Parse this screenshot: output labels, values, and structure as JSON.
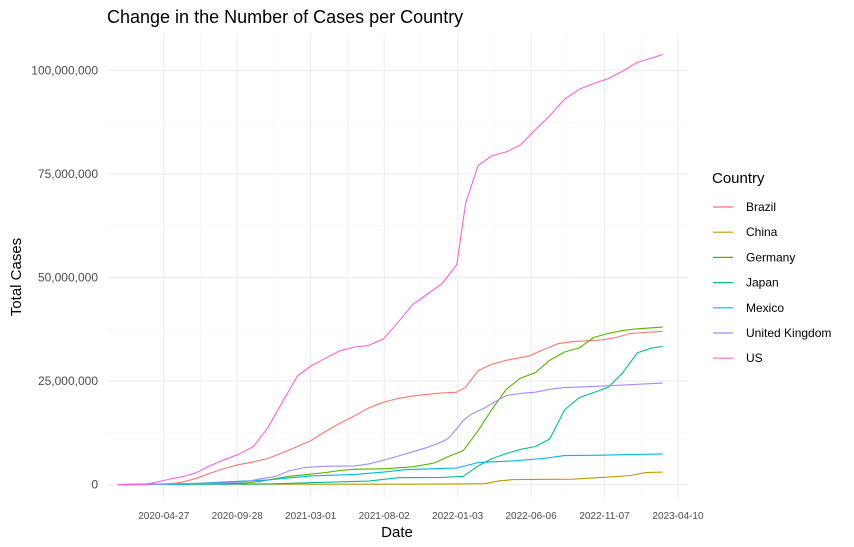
{
  "chart_data": {
    "type": "line",
    "title": "Change in the Number of Cases per Country",
    "xlabel": "Date",
    "ylabel": "Total Cases",
    "x_tick_labels": [
      "2020-04-27",
      "2020-09-28",
      "2021-03-01",
      "2021-08-02",
      "2022-01-03",
      "2022-06-06",
      "2022-11-07",
      "2023-04-10"
    ],
    "x_ticks": [
      "2020-04-27",
      "2020-09-28",
      "2021-03-01",
      "2021-08-02",
      "2022-01-03",
      "2022-06-06",
      "2022-11-07",
      "2023-04-10"
    ],
    "xlim": [
      "2020-01-01",
      "2023-05-01"
    ],
    "y_tick_labels": [
      "0",
      "25,000,000",
      "50,000,000",
      "75,000,000",
      "100,000,000"
    ],
    "y_ticks": [
      0,
      25000000,
      50000000,
      75000000,
      100000000
    ],
    "ylim": [
      -3000000,
      109000000
    ],
    "grid": true,
    "legend": {
      "title": "Country",
      "position": "right"
    },
    "series": [
      {
        "name": "Brazil",
        "color": "#F8766D",
        "points": [
          [
            "2020-01-22",
            0
          ],
          [
            "2020-03-15",
            0
          ],
          [
            "2020-05-01",
            100000
          ],
          [
            "2020-06-01",
            500000
          ],
          [
            "2020-07-01",
            1400000
          ],
          [
            "2020-08-01",
            2700000
          ],
          [
            "2020-09-01",
            3900000
          ],
          [
            "2020-10-01",
            4800000
          ],
          [
            "2020-11-01",
            5500000
          ],
          [
            "2020-12-01",
            6300000
          ],
          [
            "2021-01-01",
            7700000
          ],
          [
            "2021-02-01",
            9200000
          ],
          [
            "2021-03-01",
            10600000
          ],
          [
            "2021-04-01",
            12800000
          ],
          [
            "2021-05-01",
            14800000
          ],
          [
            "2021-06-01",
            16600000
          ],
          [
            "2021-07-01",
            18500000
          ],
          [
            "2021-08-01",
            19900000
          ],
          [
            "2021-09-01",
            20800000
          ],
          [
            "2021-10-01",
            21400000
          ],
          [
            "2021-11-01",
            21800000
          ],
          [
            "2021-12-01",
            22100000
          ],
          [
            "2022-01-01",
            22300000
          ],
          [
            "2022-01-20",
            23500000
          ],
          [
            "2022-02-15",
            27500000
          ],
          [
            "2022-03-15",
            29000000
          ],
          [
            "2022-04-15",
            30000000
          ],
          [
            "2022-06-01",
            31000000
          ],
          [
            "2022-07-01",
            32500000
          ],
          [
            "2022-08-01",
            34000000
          ],
          [
            "2022-09-01",
            34500000
          ],
          [
            "2022-10-01",
            34700000
          ],
          [
            "2022-11-01",
            34900000
          ],
          [
            "2022-12-01",
            35500000
          ],
          [
            "2023-01-01",
            36500000
          ],
          [
            "2023-03-09",
            37000000
          ]
        ]
      },
      {
        "name": "China",
        "color": "#C49A00",
        "points": [
          [
            "2020-01-22",
            0
          ],
          [
            "2020-02-20",
            80000
          ],
          [
            "2021-06-01",
            100000
          ],
          [
            "2021-12-01",
            110000
          ],
          [
            "2022-03-01",
            200000
          ],
          [
            "2022-04-01",
            900000
          ],
          [
            "2022-05-01",
            1200000
          ],
          [
            "2022-09-01",
            1300000
          ],
          [
            "2022-11-15",
            1800000
          ],
          [
            "2023-01-01",
            2200000
          ],
          [
            "2023-02-01",
            2900000
          ],
          [
            "2023-03-09",
            3000000
          ]
        ]
      },
      {
        "name": "Germany",
        "color": "#53B400",
        "points": [
          [
            "2020-01-22",
            0
          ],
          [
            "2020-04-01",
            100000
          ],
          [
            "2020-05-01",
            160000
          ],
          [
            "2020-09-01",
            250000
          ],
          [
            "2020-10-15",
            370000
          ],
          [
            "2020-11-15",
            800000
          ],
          [
            "2020-12-15",
            1400000
          ],
          [
            "2021-01-15",
            2000000
          ],
          [
            "2021-02-15",
            2350000
          ],
          [
            "2021-04-01",
            2900000
          ],
          [
            "2021-05-01",
            3400000
          ],
          [
            "2021-06-01",
            3700000
          ],
          [
            "2021-08-01",
            3800000
          ],
          [
            "2021-10-01",
            4300000
          ],
          [
            "2021-11-15",
            5200000
          ],
          [
            "2021-12-15",
            6800000
          ],
          [
            "2022-01-15",
            8200000
          ],
          [
            "2022-02-15",
            13000000
          ],
          [
            "2022-03-15",
            18000000
          ],
          [
            "2022-04-15",
            23000000
          ],
          [
            "2022-05-15",
            25700000
          ],
          [
            "2022-06-15",
            27000000
          ],
          [
            "2022-07-15",
            30000000
          ],
          [
            "2022-08-15",
            32000000
          ],
          [
            "2022-09-15",
            33000000
          ],
          [
            "2022-10-15",
            35500000
          ],
          [
            "2022-11-15",
            36500000
          ],
          [
            "2022-12-15",
            37200000
          ],
          [
            "2023-01-15",
            37600000
          ],
          [
            "2023-03-09",
            38000000
          ]
        ]
      },
      {
        "name": "Japan",
        "color": "#00C094",
        "points": [
          [
            "2020-01-22",
            0
          ],
          [
            "2020-12-01",
            150000
          ],
          [
            "2021-03-01",
            450000
          ],
          [
            "2021-07-01",
            850000
          ],
          [
            "2021-09-01",
            1650000
          ],
          [
            "2021-12-01",
            1730000
          ],
          [
            "2022-01-15",
            2000000
          ],
          [
            "2022-02-15",
            4500000
          ],
          [
            "2022-03-15",
            6200000
          ],
          [
            "2022-04-15",
            7500000
          ],
          [
            "2022-05-15",
            8500000
          ],
          [
            "2022-06-15",
            9200000
          ],
          [
            "2022-07-15",
            11000000
          ],
          [
            "2022-08-15",
            18000000
          ],
          [
            "2022-09-15",
            21000000
          ],
          [
            "2022-10-15",
            22200000
          ],
          [
            "2022-11-15",
            23500000
          ],
          [
            "2022-12-15",
            27000000
          ],
          [
            "2023-01-15",
            31800000
          ],
          [
            "2023-02-15",
            33000000
          ],
          [
            "2023-03-09",
            33300000
          ]
        ]
      },
      {
        "name": "Mexico",
        "color": "#00B6EB",
        "points": [
          [
            "2020-01-22",
            0
          ],
          [
            "2020-06-01",
            90000
          ],
          [
            "2020-09-01",
            650000
          ],
          [
            "2020-12-01",
            1100000
          ],
          [
            "2021-01-15",
            1600000
          ],
          [
            "2021-03-01",
            2100000
          ],
          [
            "2021-06-01",
            2450000
          ],
          [
            "2021-08-01",
            3000000
          ],
          [
            "2021-09-15",
            3600000
          ],
          [
            "2021-12-01",
            3900000
          ],
          [
            "2022-01-01",
            4000000
          ],
          [
            "2022-02-15",
            5300000
          ],
          [
            "2022-05-01",
            5750000
          ],
          [
            "2022-07-01",
            6300000
          ],
          [
            "2022-08-15",
            7000000
          ],
          [
            "2022-11-01",
            7100000
          ],
          [
            "2023-03-09",
            7400000
          ]
        ]
      },
      {
        "name": "United Kingdom",
        "color": "#A58AFF",
        "points": [
          [
            "2020-01-22",
            0
          ],
          [
            "2020-04-01",
            30000
          ],
          [
            "2020-06-01",
            250000
          ],
          [
            "2020-09-01",
            400000
          ],
          [
            "2020-10-15",
            700000
          ],
          [
            "2020-11-15",
            1400000
          ],
          [
            "2020-12-15",
            1900000
          ],
          [
            "2021-01-15",
            3300000
          ],
          [
            "2021-02-15",
            4100000
          ],
          [
            "2021-04-01",
            4400000
          ],
          [
            "2021-06-01",
            4500000
          ],
          [
            "2021-07-01",
            5000000
          ],
          [
            "2021-08-01",
            5900000
          ],
          [
            "2021-09-01",
            6900000
          ],
          [
            "2021-10-01",
            7900000
          ],
          [
            "2021-11-01",
            9000000
          ],
          [
            "2021-12-01",
            10300000
          ],
          [
            "2021-12-15",
            11200000
          ],
          [
            "2022-01-01",
            13500000
          ],
          [
            "2022-01-15",
            15500000
          ],
          [
            "2022-02-01",
            17000000
          ],
          [
            "2022-03-01",
            18500000
          ],
          [
            "2022-03-15",
            19500000
          ],
          [
            "2022-04-15",
            21500000
          ],
          [
            "2022-05-15",
            22000000
          ],
          [
            "2022-06-15",
            22300000
          ],
          [
            "2022-07-15",
            23000000
          ],
          [
            "2022-08-15",
            23400000
          ],
          [
            "2022-10-15",
            23700000
          ],
          [
            "2022-12-15",
            24000000
          ],
          [
            "2023-03-09",
            24500000
          ]
        ]
      },
      {
        "name": "US",
        "color": "#FB61D7",
        "points": [
          [
            "2020-01-22",
            0
          ],
          [
            "2020-03-15",
            100000
          ],
          [
            "2020-04-01",
            300000
          ],
          [
            "2020-05-01",
            1100000
          ],
          [
            "2020-06-01",
            1800000
          ],
          [
            "2020-07-01",
            2700000
          ],
          [
            "2020-08-01",
            4500000
          ],
          [
            "2020-09-01",
            6000000
          ],
          [
            "2020-10-01",
            7300000
          ],
          [
            "2020-11-01",
            9200000
          ],
          [
            "2020-12-01",
            13700000
          ],
          [
            "2021-01-01",
            20000000
          ],
          [
            "2021-02-01",
            26200000
          ],
          [
            "2021-03-01",
            28600000
          ],
          [
            "2021-04-01",
            30500000
          ],
          [
            "2021-05-01",
            32300000
          ],
          [
            "2021-06-01",
            33200000
          ],
          [
            "2021-07-01",
            33600000
          ],
          [
            "2021-08-01",
            35200000
          ],
          [
            "2021-09-01",
            39300000
          ],
          [
            "2021-10-01",
            43500000
          ],
          [
            "2021-11-01",
            46000000
          ],
          [
            "2021-12-01",
            48500000
          ],
          [
            "2022-01-01",
            53000000
          ],
          [
            "2022-01-20",
            68000000
          ],
          [
            "2022-02-15",
            77000000
          ],
          [
            "2022-03-15",
            79300000
          ],
          [
            "2022-04-15",
            80300000
          ],
          [
            "2022-05-15",
            82000000
          ],
          [
            "2022-06-15",
            85700000
          ],
          [
            "2022-07-15",
            89000000
          ],
          [
            "2022-08-15",
            93000000
          ],
          [
            "2022-09-15",
            95400000
          ],
          [
            "2022-10-15",
            96800000
          ],
          [
            "2022-11-15",
            98000000
          ],
          [
            "2022-12-15",
            99800000
          ],
          [
            "2023-01-15",
            101900000
          ],
          [
            "2023-02-15",
            103000000
          ],
          [
            "2023-03-09",
            103800000
          ]
        ]
      }
    ]
  }
}
